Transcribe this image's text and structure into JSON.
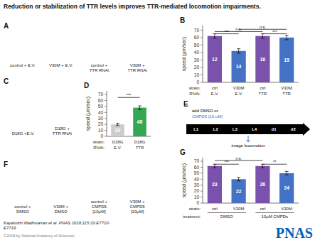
{
  "title": "Reduction or stabilization of TTR levels improves TTR-mediated locomotion impairments.",
  "chart_data": [
    {
      "type": "bar",
      "title": "B",
      "ylabel": "speed (μm/sec)",
      "categories": [
        "ctrl",
        "V30M",
        "ctrl",
        "V30M"
      ],
      "categories_label": "strain:",
      "second_row": {
        "label": "RNAi:",
        "categories": [
          "E.V.",
          "E.V.",
          "TTR",
          "TTR"
        ]
      },
      "values": [
        62,
        42,
        62,
        60
      ],
      "errors": [
        3,
        3,
        3,
        3
      ],
      "counts": [
        12,
        14,
        16,
        15
      ],
      "colors": [
        "#7B52AB",
        "#4472C4",
        "#7B52AB",
        "#4472C4"
      ],
      "ylim": [
        0,
        76
      ],
      "yticks": [
        0,
        10,
        20,
        30,
        40,
        50,
        60,
        70
      ],
      "grid": false,
      "brackets": [
        {
          "from": 0,
          "to": 1,
          "y": 65,
          "text": "***"
        },
        {
          "from": 2,
          "to": 3,
          "y": 65,
          "text": "***"
        },
        {
          "from": 0,
          "to": 2,
          "y": 68,
          "text": "n.s."
        },
        {
          "from": 1,
          "to": 3,
          "y": 71,
          "text": "n.s."
        }
      ]
    },
    {
      "type": "bar",
      "title": "D",
      "ylabel": "speed (μm/sec)",
      "categories": [
        "D18G",
        "D18G"
      ],
      "categories_label": "strain:",
      "second_row": {
        "label": "RNAi:",
        "categories": [
          "E.V.",
          "TTR"
        ]
      },
      "values": [
        20,
        48
      ],
      "errors": [
        2,
        3
      ],
      "counts": [
        20,
        48
      ],
      "colors": [
        "#CCCCCC",
        "#33A853"
      ],
      "ylim": [
        0,
        76
      ],
      "yticks": [
        0,
        10,
        20,
        30,
        40,
        50,
        60,
        70
      ],
      "grid": false,
      "brackets": [
        {
          "from": 0,
          "to": 1,
          "y": 65,
          "text": "***"
        }
      ]
    },
    {
      "type": "bar",
      "title": "G",
      "ylabel": "speed (μm/sec)",
      "categories": [
        "ctrl",
        "V30M",
        "ctrl",
        "V30M"
      ],
      "categories_label": "strain:",
      "groups": {
        "label": "treatment:",
        "items": [
          {
            "text": "DMSO",
            "from": 0,
            "to": 1
          },
          {
            "text": "10μM CMPDs",
            "from": 2,
            "to": 3
          }
        ]
      },
      "values": [
        62,
        40,
        62,
        50
      ],
      "errors": [
        3,
        3,
        3,
        3
      ],
      "counts": [
        23,
        22,
        26,
        24
      ],
      "colors": [
        "#7B52AB",
        "#4472C4",
        "#7B52AB",
        "#4472C4"
      ],
      "ylim": [
        0,
        76
      ],
      "yticks": [
        0,
        10,
        20,
        30,
        40,
        50,
        60,
        70
      ],
      "grid": false,
      "brackets": [
        {
          "from": 0,
          "to": 1,
          "y": 65,
          "text": "***"
        },
        {
          "from": 2,
          "to": 3,
          "y": 65,
          "text": "**"
        },
        {
          "from": 0,
          "to": 2,
          "y": 71,
          "text": "n.s."
        }
      ]
    }
  ],
  "diagram": {
    "label": "E",
    "add_text": "add DMSO or",
    "cmpd_text": "CMPD5 [10 μM]",
    "cmpd_color": "#4472C4",
    "stages": [
      "L1",
      "L2",
      "L3",
      "L4",
      "d1",
      "d2"
    ],
    "arrow_color": "#000000",
    "image_text": "image locomotion"
  },
  "image_panels": [
    {
      "label": "A",
      "captions": [
        "control + E.V.",
        "V30M + E.V.",
        "control +\nTTR RNAi",
        "V30M +\nTTR RNAi"
      ]
    },
    {
      "label": "C",
      "captions": [
        "D18G +E.V.",
        "D18G +\nTTR RNAi"
      ]
    },
    {
      "label": "F",
      "captions": [
        "control +\nDMSO",
        "V30M +\nDMSO",
        "control +\nCMPD5\n[10μM]",
        "V30M +\nCMPD5\n[10μM]"
      ]
    }
  ],
  "citation": "Kayalvizhi Madhivanan et al. PNAS 2018;115:33:E7710-\nE7719",
  "copyright": {
    "text": "©2018 by National Academy of Sciences",
    "color": "#808080"
  },
  "logo": {
    "text": "PNAS",
    "color": "#005EB8"
  }
}
